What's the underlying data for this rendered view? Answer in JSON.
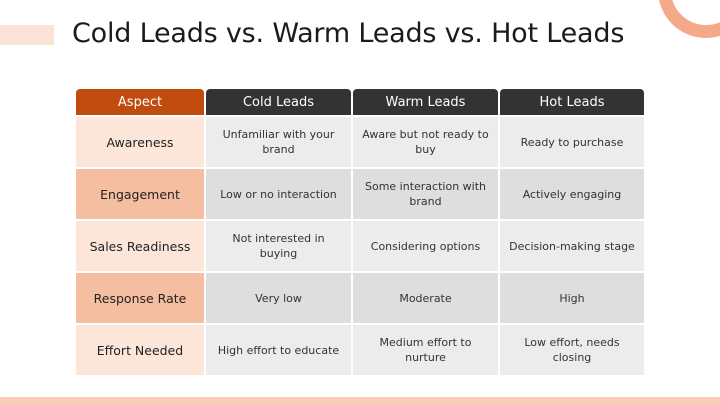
{
  "title": "Cold Leads vs. Warm Leads vs. Hot Leads",
  "table": {
    "headers": [
      "Aspect",
      "Cold Leads",
      "Warm Leads",
      "Hot Leads"
    ],
    "rows": [
      {
        "aspect": "Awareness",
        "cells": [
          "Unfamiliar with your brand",
          "Aware but not ready to buy",
          "Ready to purchase"
        ]
      },
      {
        "aspect": "Engagement",
        "cells": [
          "Low or no interaction",
          "Some interaction with brand",
          "Actively engaging"
        ]
      },
      {
        "aspect": "Sales Readiness",
        "cells": [
          "Not interested in buying",
          "Considering options",
          "Decision-making stage"
        ]
      },
      {
        "aspect": "Response Rate",
        "cells": [
          "Very low",
          "Moderate",
          "High"
        ]
      },
      {
        "aspect": "Effort Needed",
        "cells": [
          "High effort to educate",
          "Medium effort to nurture",
          "Low effort, needs closing"
        ]
      }
    ]
  },
  "colors": {
    "accent": "#c04c10",
    "header_dark": "#333333",
    "aspect_light": "#fce6da",
    "aspect_dark": "#f6bea0",
    "cell_light": "#ececec",
    "cell_dark": "#dedede"
  }
}
